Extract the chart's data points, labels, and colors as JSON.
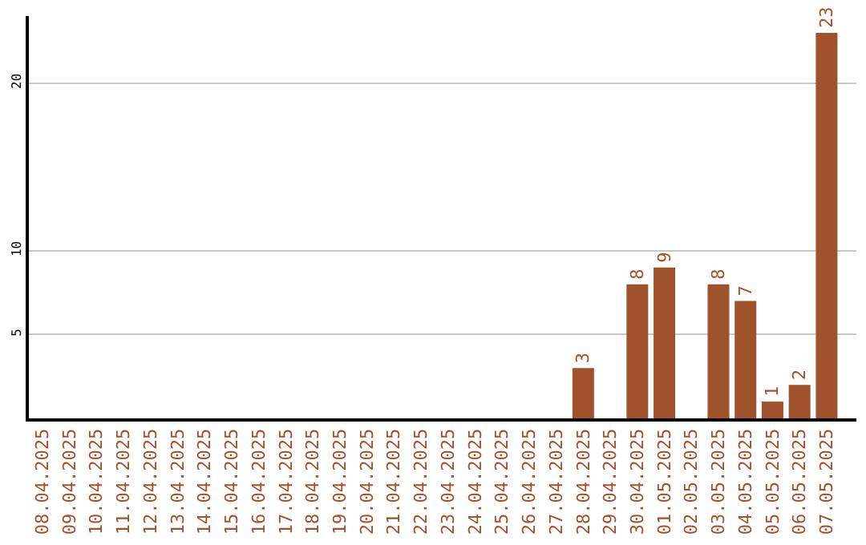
{
  "chart_data": {
    "type": "bar",
    "categories": [
      "08.04.2025",
      "09.04.2025",
      "10.04.2025",
      "11.04.2025",
      "12.04.2025",
      "13.04.2025",
      "14.04.2025",
      "15.04.2025",
      "16.04.2025",
      "17.04.2025",
      "18.04.2025",
      "19.04.2025",
      "20.04.2025",
      "21.04.2025",
      "22.04.2025",
      "23.04.2025",
      "24.04.2025",
      "25.04.2025",
      "26.04.2025",
      "27.04.2025",
      "28.04.2025",
      "29.04.2025",
      "30.04.2025",
      "01.05.2025",
      "02.05.2025",
      "03.05.2025",
      "04.05.2025",
      "05.05.2025",
      "06.05.2025",
      "07.05.2025"
    ],
    "values": [
      0,
      0,
      0,
      0,
      0,
      0,
      0,
      0,
      0,
      0,
      0,
      0,
      0,
      0,
      0,
      0,
      0,
      0,
      0,
      0,
      3,
      0,
      8,
      9,
      0,
      8,
      7,
      1,
      2,
      23
    ],
    "value_labels": [
      null,
      null,
      null,
      null,
      null,
      null,
      null,
      null,
      null,
      null,
      null,
      null,
      null,
      null,
      null,
      null,
      null,
      null,
      null,
      null,
      "3",
      null,
      "8",
      "9",
      null,
      "8",
      "7",
      "1",
      "2",
      "23"
    ],
    "color": "#a0522d",
    "ylim": [
      0,
      24
    ],
    "yticks": [
      5,
      10,
      20
    ],
    "grid": "y",
    "legend": false
  }
}
